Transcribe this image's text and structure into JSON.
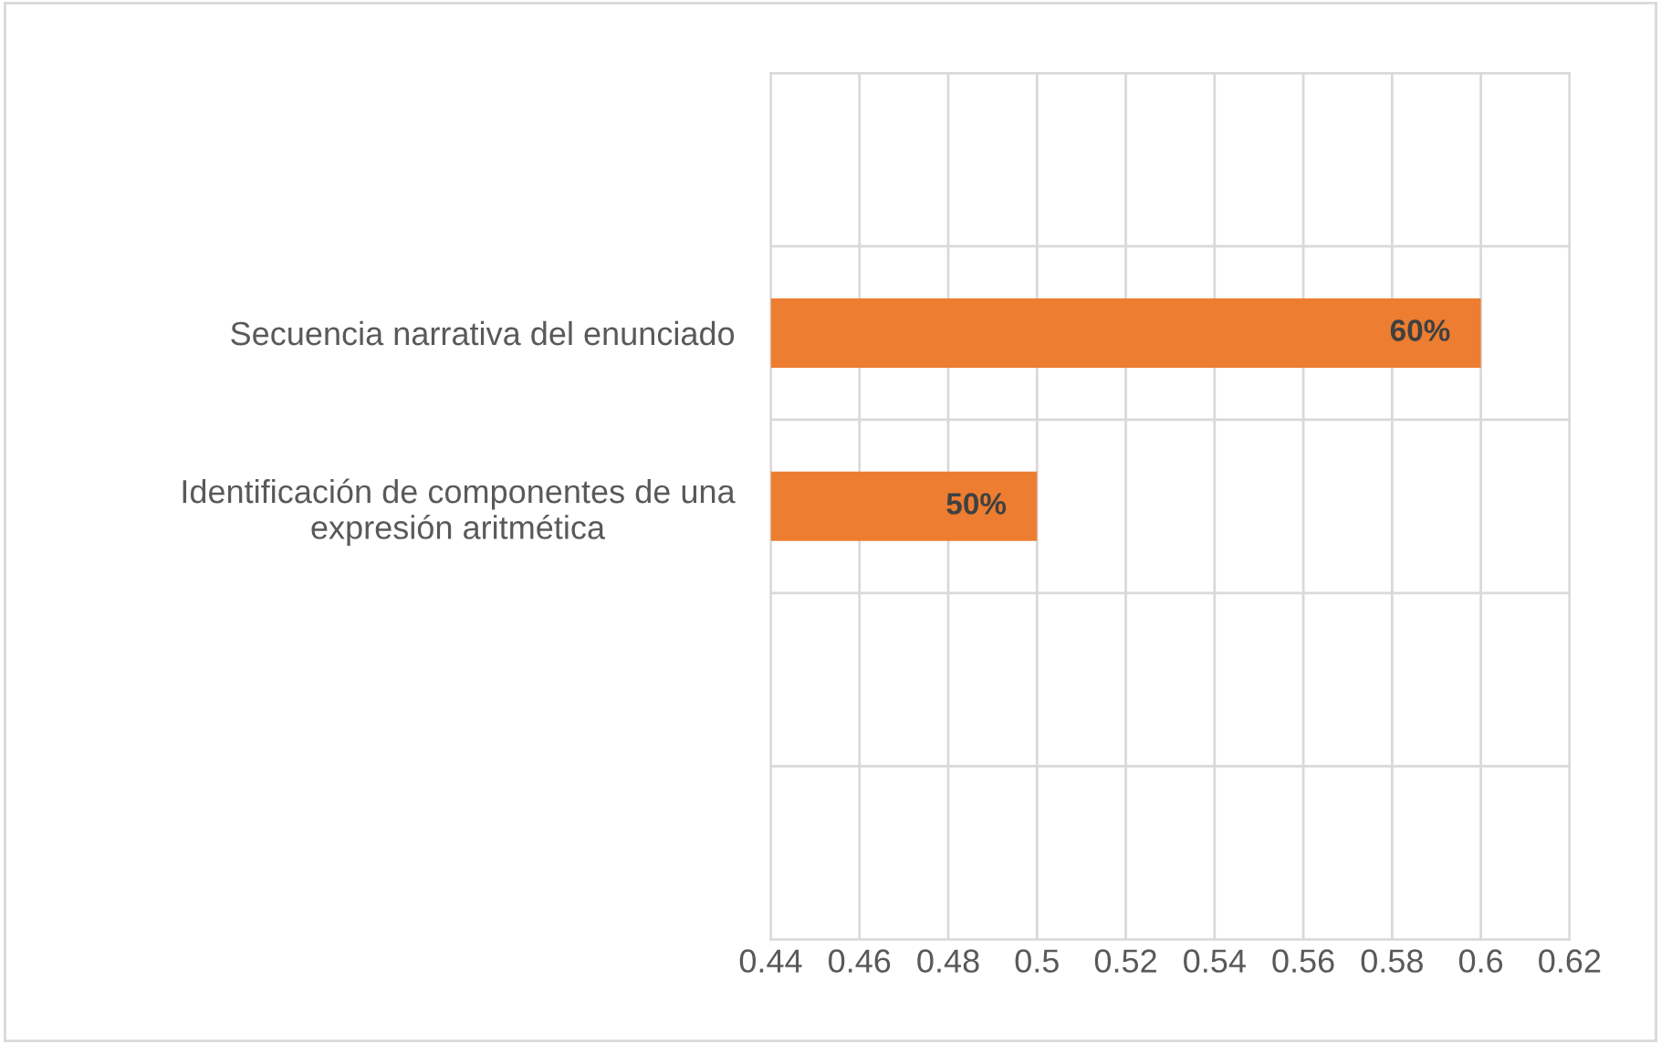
{
  "chart_data": {
    "type": "bar",
    "orientation": "horizontal",
    "categories": [
      null,
      "Secuencia narrativa del enunciado",
      "Identificación de componentes de una expresión aritmética",
      null,
      null
    ],
    "values": [
      null,
      0.6,
      0.5,
      null,
      null
    ],
    "value_labels": [
      null,
      "60%",
      "50%",
      null,
      null
    ],
    "color": "#ed7d31",
    "xlim": [
      0.44,
      0.62
    ],
    "xticks": [
      0.44,
      0.46,
      0.48,
      0.5,
      0.52,
      0.54,
      0.56,
      0.58,
      0.6,
      0.62
    ],
    "grid": true
  }
}
